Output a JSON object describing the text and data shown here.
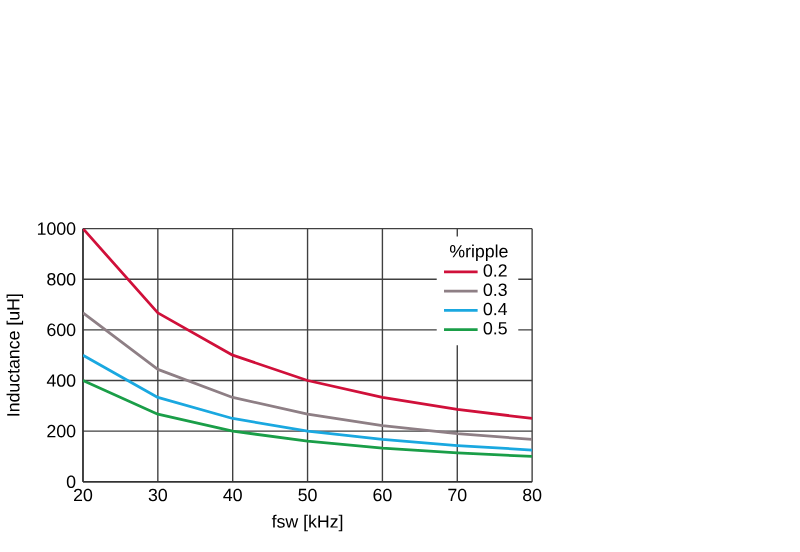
{
  "chart_data": {
    "type": "line",
    "xlabel": "fsw [kHz]",
    "ylabel": "Inductance [uH]",
    "legend_title": "%ripple",
    "x": [
      20,
      30,
      40,
      50,
      60,
      70,
      80
    ],
    "series": [
      {
        "name": "0.2",
        "color": "#d0103a",
        "values": [
          1000,
          667,
          500,
          400,
          333,
          286,
          250
        ]
      },
      {
        "name": "0.3",
        "color": "#8e7f85",
        "values": [
          667,
          444,
          333,
          267,
          222,
          190,
          167
        ]
      },
      {
        "name": "0.4",
        "color": "#1aa8e0",
        "values": [
          500,
          333,
          250,
          200,
          167,
          143,
          125
        ]
      },
      {
        "name": "0.5",
        "color": "#1a9e48",
        "values": [
          400,
          267,
          200,
          160,
          133,
          114,
          100
        ]
      }
    ],
    "xlim": [
      20,
      80
    ],
    "xticks": [
      20,
      30,
      40,
      50,
      60,
      70,
      80
    ],
    "ylim": [
      0,
      1000
    ],
    "yticks": [
      0,
      200,
      400,
      600,
      800,
      1000
    ],
    "grid": true,
    "legend": "top right",
    "marker": "none",
    "line_style": "solid"
  }
}
